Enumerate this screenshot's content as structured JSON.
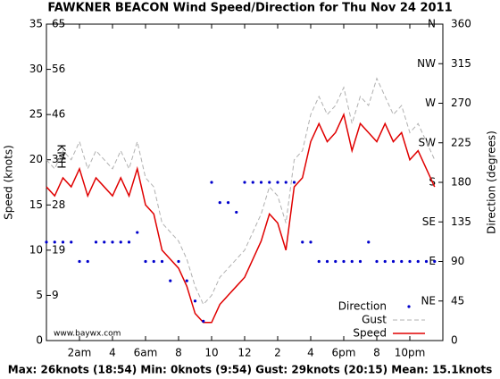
{
  "chart_data": {
    "type": "line",
    "title": "FAWKNER BEACON Wind Speed/Direction for Thu Nov 24 2011",
    "y_label": "Speed (knots)",
    "y2_label": "Direction (degrees)",
    "kmh_label": "KMH",
    "watermark": "www.baywx.com",
    "footer": "Max: 26knots (18:54) Min: 0knots (9:54) Gust: 29knots (20:15) Mean: 15.1knots",
    "legend": "lower right",
    "x": [
      0,
      0.5,
      1,
      1.5,
      2,
      2.5,
      3,
      3.5,
      4,
      4.5,
      5,
      5.5,
      6,
      6.5,
      7,
      7.5,
      8,
      8.5,
      9,
      9.5,
      10,
      10.5,
      11,
      11.5,
      12,
      12.5,
      13,
      13.5,
      14,
      14.5,
      15,
      15.5,
      16,
      16.5,
      17,
      17.5,
      18,
      18.5,
      19,
      19.5,
      20,
      20.5,
      21,
      21.5,
      22,
      22.5,
      23,
      23.5
    ],
    "xlim": [
      0,
      24
    ],
    "xticks": [
      {
        "value": 2,
        "label": "2am"
      },
      4,
      {
        "value": 6,
        "label": "6am"
      },
      8,
      10,
      12,
      {
        "value": 14,
        "label": "2"
      },
      {
        "value": 16,
        "label": "4"
      },
      {
        "value": 18,
        "label": "6pm"
      },
      {
        "value": 20,
        "label": "8"
      },
      {
        "value": 22,
        "label": "10pm"
      }
    ],
    "ylim": [
      0,
      35
    ],
    "yticks": [
      0,
      5,
      10,
      15,
      20,
      25,
      30,
      35
    ],
    "kmh_ticks": [
      {
        "value": 5,
        "label": "9"
      },
      {
        "value": 10,
        "label": "19"
      },
      {
        "value": 15,
        "label": "28"
      },
      {
        "value": 20,
        "label": "37"
      },
      {
        "value": 25,
        "label": "46"
      },
      {
        "value": 30,
        "label": "56"
      },
      {
        "value": 35,
        "label": "65"
      }
    ],
    "y2lim": [
      0,
      360
    ],
    "y2ticks": [
      0,
      45,
      90,
      135,
      180,
      225,
      270,
      315,
      360
    ],
    "compass_ticks": [
      {
        "value": 45,
        "label": "NE"
      },
      {
        "value": 90,
        "label": "E"
      },
      {
        "value": 135,
        "label": "SE"
      },
      {
        "value": 180,
        "label": "S"
      },
      {
        "value": 225,
        "label": "SW"
      },
      {
        "value": 270,
        "label": "W"
      },
      {
        "value": 315,
        "label": "NW"
      },
      {
        "value": 360,
        "label": "N"
      }
    ],
    "series": [
      {
        "name": "Speed",
        "color": "#e00000",
        "style": "solid",
        "values": [
          17,
          16,
          18,
          17,
          19,
          16,
          18,
          17,
          16,
          18,
          16,
          19,
          15,
          14,
          10,
          9,
          8,
          6,
          3,
          2,
          2,
          4,
          5,
          6,
          7,
          9,
          11,
          14,
          13,
          10,
          17,
          18,
          22,
          24,
          22,
          23,
          25,
          21,
          24,
          23,
          22,
          24,
          22,
          23,
          20,
          21,
          19,
          17
        ]
      },
      {
        "name": "Gust",
        "color": "#b0b0b0",
        "style": "dashed",
        "values": [
          20,
          19,
          21,
          20,
          22,
          19,
          21,
          20,
          19,
          21,
          19,
          22,
          18,
          17,
          13,
          12,
          11,
          9,
          6,
          4,
          5,
          7,
          8,
          9,
          10,
          12,
          14,
          17,
          16,
          13,
          20,
          21,
          25,
          27,
          25,
          26,
          28,
          24,
          27,
          26,
          29,
          27,
          25,
          26,
          23,
          24,
          22,
          20
        ]
      },
      {
        "name": "Direction",
        "color": "#0000cc",
        "style": "dots",
        "axis": "y2",
        "values": [
          112,
          112,
          112,
          112,
          90,
          90,
          112,
          112,
          112,
          112,
          112,
          123,
          90,
          90,
          90,
          68,
          90,
          68,
          45,
          22,
          180,
          157,
          157,
          146,
          180,
          180,
          180,
          180,
          180,
          180,
          180,
          112,
          112,
          90,
          90,
          90,
          90,
          90,
          90,
          112,
          90,
          90,
          90,
          90,
          90,
          90,
          90,
          90
        ]
      }
    ]
  }
}
